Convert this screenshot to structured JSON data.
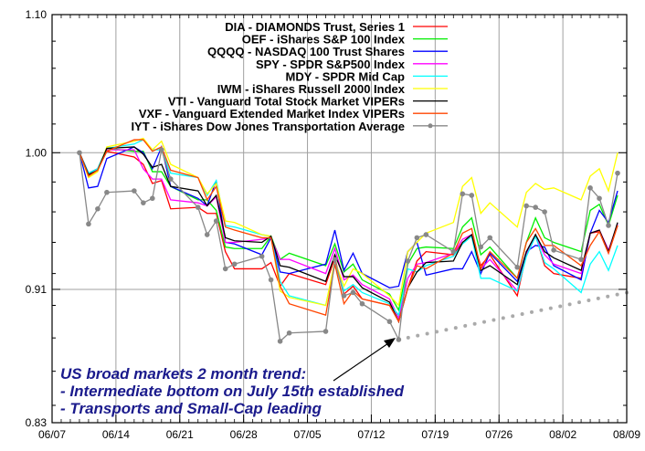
{
  "chart_data": {
    "type": "line",
    "title": "",
    "xlabel": "",
    "ylabel": "",
    "y_scale": "log",
    "ylim": [
      0.83,
      1.1
    ],
    "yticks": [
      "1.10",
      "1.00",
      "0.91",
      "0.83"
    ],
    "ytick_values": [
      1.1,
      1.0,
      0.91,
      0.83
    ],
    "xticks": [
      "06/07",
      "06/14",
      "06/21",
      "06/28",
      "07/05",
      "07/12",
      "07/19",
      "07/26",
      "08/02",
      "08/09"
    ],
    "xlim": [
      "06/07",
      "08/09"
    ],
    "grid": true,
    "legend_placement": "top-right",
    "x": [
      "06/10",
      "06/11",
      "06/12",
      "06/13",
      "06/16",
      "06/17",
      "06/18",
      "06/19",
      "06/20",
      "06/23",
      "06/24",
      "06/25",
      "06/26",
      "06/27",
      "06/30",
      "07/01",
      "07/02",
      "07/03",
      "07/07",
      "07/08",
      "07/09",
      "07/10",
      "07/11",
      "07/14",
      "07/15",
      "07/16",
      "07/17",
      "07/18",
      "07/21",
      "07/22",
      "07/23",
      "07/24",
      "07/25",
      "07/28",
      "07/29",
      "07/30",
      "07/31",
      "08/01",
      "08/04",
      "08/05",
      "08/06",
      "08/07",
      "08/08"
    ],
    "series": [
      {
        "name": "DIA - DIAMONDS Trust, Series 1",
        "color": "#ff0000",
        "markers": false,
        "values": [
          1.0,
          0.986,
          0.989,
          1.001,
          0.997,
          0.992,
          0.979,
          0.981,
          0.962,
          0.963,
          0.959,
          0.959,
          0.934,
          0.923,
          0.923,
          0.927,
          0.912,
          0.92,
          0.913,
          0.93,
          0.907,
          0.912,
          0.904,
          0.9,
          0.89,
          0.911,
          0.928,
          0.934,
          0.932,
          0.94,
          0.944,
          0.925,
          0.932,
          0.906,
          0.933,
          0.945,
          0.925,
          0.92,
          0.917,
          0.946,
          0.947,
          0.933,
          0.951
        ]
      },
      {
        "name": "OEF - iShares S&P 100 Index",
        "color": "#00ee00",
        "markers": false,
        "values": [
          1.0,
          0.986,
          0.989,
          1.003,
          1.001,
          1.001,
          0.987,
          0.987,
          0.977,
          0.968,
          0.968,
          0.961,
          0.937,
          0.936,
          0.936,
          0.944,
          0.929,
          0.933,
          0.925,
          0.939,
          0.921,
          0.926,
          0.916,
          0.907,
          0.897,
          0.926,
          0.936,
          0.937,
          0.936,
          0.95,
          0.956,
          0.932,
          0.937,
          0.917,
          0.94,
          0.956,
          0.943,
          0.94,
          0.934,
          0.961,
          0.965,
          0.951,
          0.971
        ]
      },
      {
        "name": "QQQQ - NASDAQ 100 Trust Shares",
        "color": "#0000ff",
        "markers": false,
        "values": [
          1.0,
          0.976,
          0.977,
          0.996,
          1.004,
          1.0,
          0.989,
          1.004,
          0.977,
          0.969,
          0.964,
          0.981,
          0.94,
          0.939,
          0.932,
          0.943,
          0.921,
          0.92,
          0.926,
          0.948,
          0.922,
          0.933,
          0.92,
          0.911,
          0.912,
          0.934,
          0.94,
          0.919,
          0.923,
          0.923,
          0.934,
          0.92,
          0.933,
          0.915,
          0.934,
          0.938,
          0.937,
          0.925,
          0.916,
          0.946,
          0.961,
          0.953,
          0.974
        ]
      },
      {
        "name": "SPY - SPDR S&P500 Index",
        "color": "#ff00ff",
        "markers": false,
        "values": [
          1.0,
          0.986,
          0.989,
          1.002,
          1.002,
          0.989,
          0.982,
          0.982,
          0.968,
          0.966,
          0.964,
          0.97,
          0.94,
          0.94,
          0.942,
          0.943,
          0.929,
          0.929,
          0.92,
          0.936,
          0.916,
          0.919,
          0.913,
          0.904,
          0.892,
          0.917,
          0.926,
          0.927,
          0.933,
          0.942,
          0.945,
          0.923,
          0.929,
          0.909,
          0.932,
          0.944,
          0.932,
          0.926,
          0.92,
          0.946,
          0.948,
          0.935,
          0.952
        ]
      },
      {
        "name": "MDY - SPDR Mid Cap",
        "color": "#00ffff",
        "markers": false,
        "values": [
          1.0,
          0.986,
          0.989,
          1.003,
          1.006,
          1.009,
          1.002,
          1.002,
          0.986,
          0.983,
          0.971,
          0.981,
          0.951,
          0.95,
          0.945,
          0.944,
          0.915,
          0.906,
          0.9,
          0.926,
          0.909,
          0.913,
          0.908,
          0.901,
          0.894,
          0.923,
          0.921,
          0.925,
          0.931,
          0.939,
          0.944,
          0.917,
          0.917,
          0.909,
          0.931,
          0.944,
          0.927,
          0.923,
          0.908,
          0.926,
          0.934,
          0.922,
          0.938
        ]
      },
      {
        "name": "IWM - iShares Russell 2000 Index",
        "color": "#ffff00",
        "markers": false,
        "values": [
          1.0,
          0.983,
          0.987,
          1.004,
          1.008,
          1.01,
          1.002,
          1.008,
          0.992,
          0.983,
          0.972,
          0.979,
          0.954,
          0.953,
          0.945,
          0.944,
          0.909,
          0.905,
          0.9,
          0.928,
          0.912,
          0.923,
          0.92,
          0.906,
          0.9,
          0.934,
          0.94,
          0.946,
          0.953,
          0.977,
          0.983,
          0.959,
          0.966,
          0.95,
          0.973,
          0.979,
          0.975,
          0.976,
          0.968,
          0.984,
          0.989,
          0.974,
          1.0
        ]
      },
      {
        "name": "VTI - Vanguard Total Stock Market VIPERs",
        "color": "#000000",
        "markers": false,
        "values": [
          1.0,
          0.985,
          0.988,
          1.003,
          1.004,
          0.999,
          0.99,
          0.992,
          0.977,
          0.974,
          0.964,
          0.971,
          0.943,
          0.941,
          0.94,
          0.944,
          0.925,
          0.924,
          0.915,
          0.932,
          0.918,
          0.918,
          0.911,
          0.902,
          0.89,
          0.911,
          0.921,
          0.927,
          0.928,
          0.94,
          0.945,
          0.922,
          0.925,
          0.913,
          0.934,
          0.945,
          0.934,
          0.93,
          0.922,
          0.946,
          0.948,
          0.934,
          0.953
        ]
      },
      {
        "name": "VXF - Vanguard Extended Market Index VIPERs",
        "color": "#ff4500",
        "markers": false,
        "values": [
          1.0,
          0.984,
          0.988,
          1.001,
          1.009,
          1.009,
          1.001,
          1.004,
          0.988,
          0.983,
          0.968,
          0.977,
          0.95,
          0.948,
          0.943,
          0.943,
          0.912,
          0.901,
          0.894,
          0.926,
          0.901,
          0.909,
          0.904,
          0.9,
          0.89,
          0.911,
          0.925,
          0.923,
          0.933,
          0.946,
          0.949,
          0.923,
          0.934,
          0.917,
          0.94,
          0.949,
          0.938,
          0.938,
          0.925,
          0.938,
          0.947,
          0.933,
          0.951
        ]
      },
      {
        "name": "IYT - iShares Dow Jones Transportation Average",
        "color": "#888888",
        "markers": true,
        "values": [
          1.0,
          0.952,
          0.962,
          0.973,
          0.974,
          0.966,
          0.969,
          1.002,
          0.982,
          0.963,
          0.945,
          0.954,
          0.923,
          0.926,
          0.931,
          0.916,
          0.878,
          0.883,
          0.884,
          0.929,
          0.906,
          0.908,
          0.901,
          0.89,
          0.879,
          0.928,
          0.943,
          0.945,
          0.934,
          0.972,
          0.971,
          0.937,
          0.943,
          0.924,
          0.964,
          0.963,
          0.96,
          0.935,
          0.929,
          0.976,
          0.969,
          0.951,
          0.986
        ]
      }
    ],
    "trendline": {
      "style": "dotted",
      "color": "#aaaaaa",
      "from": [
        "07/15",
        0.879
      ],
      "to": [
        "08/09",
        0.908
      ]
    },
    "annotations": [
      {
        "text": "US broad markets 2 month trend:",
        "arrow_to": [
          "07/15",
          0.879
        ]
      },
      {
        "text": "- Intermediate bottom on July 15th established"
      },
      {
        "text": "- Transports and Small-Cap leading"
      }
    ]
  }
}
